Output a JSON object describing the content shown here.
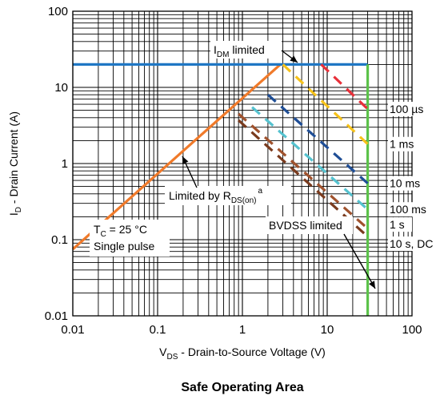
{
  "chart_data": {
    "type": "line",
    "title": "Safe Operating Area",
    "xlabel": {
      "main": "V",
      "sub": "DS",
      "rest": " - Drain-to-Source Voltage (V)"
    },
    "ylabel": {
      "main": "I",
      "sub": "D",
      "rest": " - Drain Current (A)"
    },
    "xscale": "log",
    "yscale": "log",
    "xlim": [
      0.01,
      100
    ],
    "ylim": [
      0.01,
      100
    ],
    "grid": true,
    "x_ticks": [
      {
        "v": 0.01,
        "label": "0.01"
      },
      {
        "v": 0.1,
        "label": "0.1"
      },
      {
        "v": 1,
        "label": "1"
      },
      {
        "v": 10,
        "label": "10"
      },
      {
        "v": 100,
        "label": "100"
      }
    ],
    "y_ticks": [
      {
        "v": 0.01,
        "label": "0.01"
      },
      {
        "v": 0.1,
        "label": "0.1"
      },
      {
        "v": 1,
        "label": "1"
      },
      {
        "v": 10,
        "label": "10"
      },
      {
        "v": 100,
        "label": "100"
      }
    ],
    "colors": {
      "idm": "#1f77c4",
      "rds": "#f07a2a",
      "bvdss": "#5cc24a",
      "us100": "#e8303a",
      "ms1": "#f6c21b",
      "ms10": "#1f4e96",
      "ms100": "#55c2cf",
      "s1": "#a0522d",
      "s10": "#7a3b1e"
    },
    "series": [
      {
        "key": "rds",
        "style": "solid",
        "points": [
          [
            0.01,
            0.075
          ],
          [
            2.8,
            20
          ]
        ]
      },
      {
        "key": "idm",
        "style": "solid",
        "points": [
          [
            0.01,
            20
          ],
          [
            30,
            20
          ]
        ]
      },
      {
        "key": "bvdss",
        "style": "solid",
        "points": [
          [
            30,
            0.01
          ],
          [
            30,
            20
          ]
        ]
      },
      {
        "key": "us100",
        "style": "dashed",
        "points": [
          [
            8.5,
            20
          ],
          [
            30,
            5.2
          ]
        ]
      },
      {
        "key": "ms1",
        "style": "dashed",
        "points": [
          [
            3,
            20
          ],
          [
            30,
            1.8
          ]
        ]
      },
      {
        "key": "ms10",
        "style": "dashed",
        "points": [
          [
            2,
            8
          ],
          [
            30,
            0.55
          ]
        ]
      },
      {
        "key": "ms100",
        "style": "dashed",
        "points": [
          [
            1.3,
            5.5
          ],
          [
            30,
            0.25
          ]
        ]
      },
      {
        "key": "s1",
        "style": "dashed",
        "points": [
          [
            0.9,
            4.5
          ],
          [
            30,
            0.14
          ]
        ]
      },
      {
        "key": "s10",
        "style": "dashed",
        "points": [
          [
            0.9,
            3.7
          ],
          [
            30,
            0.11
          ]
        ]
      }
    ],
    "annotations": {
      "idm": {
        "main": "I",
        "sub": "DM",
        "rest": " limited"
      },
      "rds": {
        "main": "Limited by R",
        "sub": "DS(on)",
        "sup": "a"
      },
      "tc": {
        "main": "T",
        "sub": "C",
        "rest": " = 25 °C"
      },
      "single": "Single pulse",
      "bvdss": "BVDSS limited",
      "curve_labels": [
        {
          "key": "us100",
          "text": "100 µs"
        },
        {
          "key": "ms1",
          "text": "1 ms"
        },
        {
          "key": "ms10",
          "text": "10 ms"
        },
        {
          "key": "ms100",
          "text": "100 ms"
        },
        {
          "key": "s1",
          "text": "1 s"
        },
        {
          "key": "s10",
          "text": "10 s, DC"
        }
      ]
    }
  }
}
